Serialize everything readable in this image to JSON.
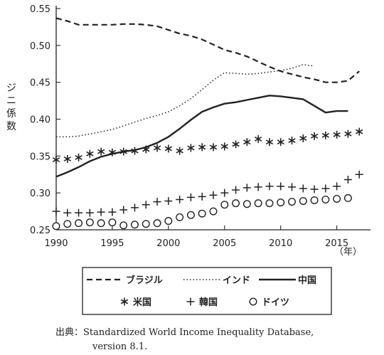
{
  "chart_data": {
    "type": "line",
    "ylabel": "ジニ係数",
    "xunit": "（年）",
    "xlim": [
      1990,
      2018
    ],
    "ylim": [
      0.25,
      0.55
    ],
    "xticks": [
      1990,
      1995,
      2000,
      2005,
      2010,
      2015
    ],
    "yticks": [
      0.25,
      0.3,
      0.35,
      0.4,
      0.45,
      0.5,
      0.55
    ],
    "ytick_labels": [
      "0.25",
      "0.30",
      "0.35",
      "0.40",
      "0.45",
      "0.50",
      "0.55"
    ],
    "grid": false,
    "legend_position": "bottom",
    "series": [
      {
        "name": "ブラジル",
        "style": "dashed",
        "x": [
          1990,
          1991,
          1992,
          1993,
          1994,
          1995,
          1996,
          1997,
          1998,
          1999,
          2000,
          2001,
          2002,
          2003,
          2004,
          2005,
          2006,
          2007,
          2008,
          2009,
          2010,
          2011,
          2012,
          2013,
          2014,
          2015,
          2016,
          2017
        ],
        "y": [
          0.537,
          0.533,
          0.528,
          0.528,
          0.528,
          0.528,
          0.529,
          0.529,
          0.528,
          0.526,
          0.521,
          0.516,
          0.513,
          0.508,
          0.501,
          0.494,
          0.49,
          0.485,
          0.478,
          0.471,
          0.465,
          0.461,
          0.457,
          0.454,
          0.45,
          0.45,
          0.452,
          0.465
        ]
      },
      {
        "name": "インド",
        "style": "dotted",
        "x": [
          1990,
          1991,
          1992,
          1993,
          1994,
          1995,
          1996,
          1997,
          1998,
          1999,
          2000,
          2001,
          2002,
          2003,
          2004,
          2005,
          2006,
          2007,
          2008,
          2009,
          2010,
          2011,
          2012,
          2013
        ],
        "y": [
          0.376,
          0.376,
          0.377,
          0.38,
          0.383,
          0.386,
          0.391,
          0.396,
          0.401,
          0.405,
          0.41,
          0.418,
          0.428,
          0.44,
          0.453,
          0.463,
          0.462,
          0.461,
          0.462,
          0.464,
          0.466,
          0.469,
          0.474,
          0.472
        ]
      },
      {
        "name": "中国",
        "style": "solid",
        "x": [
          1990,
          1991,
          1992,
          1993,
          1994,
          1995,
          1996,
          1997,
          1998,
          1999,
          2000,
          2001,
          2002,
          2003,
          2004,
          2005,
          2006,
          2007,
          2008,
          2009,
          2010,
          2011,
          2012,
          2013,
          2014,
          2015,
          2016
        ],
        "y": [
          0.322,
          0.328,
          0.335,
          0.343,
          0.349,
          0.353,
          0.356,
          0.358,
          0.362,
          0.368,
          0.376,
          0.387,
          0.399,
          0.41,
          0.416,
          0.421,
          0.423,
          0.426,
          0.429,
          0.432,
          0.431,
          0.429,
          0.427,
          0.418,
          0.409,
          0.411,
          0.411
        ]
      },
      {
        "name": "米国",
        "style": "asterisk",
        "x": [
          1990,
          1991,
          1992,
          1993,
          1994,
          1995,
          1996,
          1997,
          1998,
          1999,
          2000,
          2001,
          2002,
          2003,
          2004,
          2005,
          2006,
          2007,
          2008,
          2009,
          2010,
          2011,
          2012,
          2013,
          2014,
          2015,
          2016,
          2017
        ],
        "y": [
          0.345,
          0.346,
          0.348,
          0.353,
          0.356,
          0.355,
          0.356,
          0.357,
          0.359,
          0.361,
          0.36,
          0.357,
          0.361,
          0.362,
          0.362,
          0.363,
          0.366,
          0.369,
          0.373,
          0.369,
          0.369,
          0.371,
          0.374,
          0.377,
          0.378,
          0.379,
          0.38,
          0.383
        ]
      },
      {
        "name": "韓国",
        "style": "plus",
        "x": [
          1990,
          1991,
          1992,
          1993,
          1994,
          1995,
          1996,
          1997,
          1998,
          1999,
          2000,
          2001,
          2002,
          2003,
          2004,
          2005,
          2006,
          2007,
          2008,
          2009,
          2010,
          2011,
          2012,
          2013,
          2014,
          2015,
          2016,
          2017
        ],
        "y": [
          0.275,
          0.273,
          0.273,
          0.273,
          0.274,
          0.274,
          0.277,
          0.28,
          0.284,
          0.288,
          0.289,
          0.291,
          0.294,
          0.295,
          0.297,
          0.3,
          0.304,
          0.307,
          0.308,
          0.309,
          0.309,
          0.308,
          0.306,
          0.305,
          0.306,
          0.309,
          0.318,
          0.325
        ]
      },
      {
        "name": "ドイツ",
        "style": "circle",
        "x": [
          1990,
          1991,
          1992,
          1993,
          1994,
          1995,
          1996,
          1997,
          1998,
          1999,
          2000,
          2001,
          2002,
          2003,
          2004,
          2005,
          2006,
          2007,
          2008,
          2009,
          2010,
          2011,
          2012,
          2013,
          2014,
          2015,
          2016
        ],
        "y": [
          0.255,
          0.258,
          0.259,
          0.26,
          0.259,
          0.26,
          0.256,
          0.257,
          0.258,
          0.259,
          0.262,
          0.267,
          0.27,
          0.272,
          0.275,
          0.284,
          0.286,
          0.285,
          0.286,
          0.286,
          0.287,
          0.288,
          0.289,
          0.29,
          0.291,
          0.292,
          0.293
        ]
      }
    ]
  },
  "source": {
    "line1": "出典：Standardized World Income Inequality Database,",
    "line2": "version 8.1."
  }
}
